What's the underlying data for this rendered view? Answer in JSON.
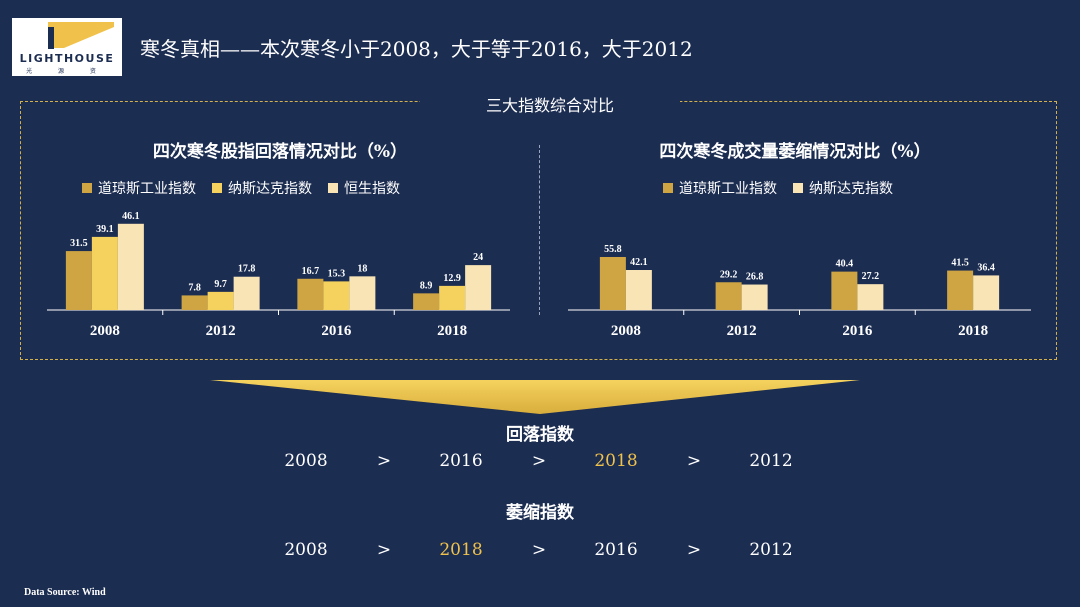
{
  "logo": {
    "text": "LIGHTHOUSE",
    "sub": "光 源 资 本"
  },
  "title": "寒冬真相——本次寒冬小于2008，大于等于2016，大于2012",
  "frame_label": "三大指数综合对比",
  "colors": {
    "background": "#1c2d52",
    "dow": "#cfa544",
    "nasdaq": "#f5d25e",
    "hangseng": "#f8e4b4",
    "highlight": "#f0c24b"
  },
  "chart_data": [
    {
      "type": "bar",
      "title": "四次寒冬股指回落情况对比（%）",
      "categories": [
        "2008",
        "2012",
        "2016",
        "2018"
      ],
      "series": [
        {
          "name": "道琼斯工业指数",
          "values": [
            31.5,
            7.8,
            16.7,
            8.9
          ],
          "color": "#cfa544"
        },
        {
          "name": "纳斯达克指数",
          "values": [
            39.1,
            9.7,
            15.3,
            12.9
          ],
          "color": "#f5d25e"
        },
        {
          "name": "恒生指数",
          "values": [
            46.1,
            17.8,
            18,
            24
          ],
          "color": "#f8e4b4"
        }
      ],
      "data_labels": [
        [
          "31.5",
          "7.8",
          "16.7",
          "8.9"
        ],
        [
          "39.1",
          "9.7",
          "15.3",
          "12.9"
        ],
        [
          "46.1",
          "17.8",
          "18",
          "24"
        ]
      ],
      "ylim": [
        0,
        50
      ],
      "legend": "top"
    },
    {
      "type": "bar",
      "title": "四次寒冬成交量萎缩情况对比（%）",
      "categories": [
        "2008",
        "2012",
        "2016",
        "2018"
      ],
      "series": [
        {
          "name": "道琼斯工业指数",
          "values": [
            55.8,
            29.2,
            40.4,
            41.5
          ],
          "color": "#cfa544"
        },
        {
          "name": "纳斯达克指数",
          "values": [
            42.1,
            26.8,
            27.2,
            36.4
          ],
          "color": "#f8e4b4"
        }
      ],
      "data_labels": [
        [
          "55.8",
          "29.2",
          "40.4",
          "41.5"
        ],
        [
          "42.1",
          "26.8",
          "27.2",
          "36.4"
        ]
      ],
      "ylim": [
        0,
        60
      ],
      "legend": "top"
    }
  ],
  "ranking": {
    "fall": {
      "heading": "回落指数",
      "items": [
        "2008",
        ">",
        "2016",
        ">",
        "2018",
        ">",
        "2012"
      ],
      "highlight": "2018"
    },
    "shrink": {
      "heading": "萎缩指数",
      "items": [
        "2008",
        ">",
        "2018",
        ">",
        "2016",
        ">",
        "2012"
      ],
      "highlight": "2018"
    }
  },
  "source": "Data Source: Wind"
}
